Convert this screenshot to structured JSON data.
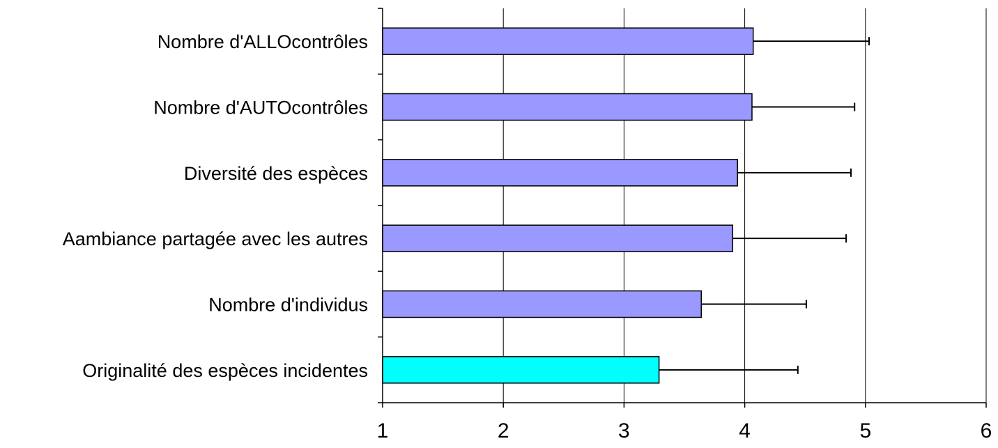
{
  "chart_data": {
    "type": "bar",
    "orientation": "horizontal",
    "title": "",
    "xlabel": "",
    "ylabel": "",
    "categories": [
      "Nombre d'ALLOcontrôles",
      "Nombre d'AUTOcontrôles",
      "Diversité des espèces",
      "Aambiance partagée avec les autres",
      "Nombre d'individus",
      "Originalité des espèces incidentes"
    ],
    "values": [
      4.07,
      4.06,
      3.94,
      3.9,
      3.64,
      3.29
    ],
    "error_plus": [
      0.96,
      0.85,
      0.94,
      0.94,
      0.87,
      1.15
    ],
    "bar_colors": [
      "#9999ff",
      "#9999ff",
      "#9999ff",
      "#9999ff",
      "#9999ff",
      "#00ffff"
    ],
    "xlim": [
      1,
      6
    ],
    "xticks": [
      "1",
      "2",
      "3",
      "4",
      "5",
      "6"
    ],
    "grid": "vertical",
    "legend": "none"
  }
}
